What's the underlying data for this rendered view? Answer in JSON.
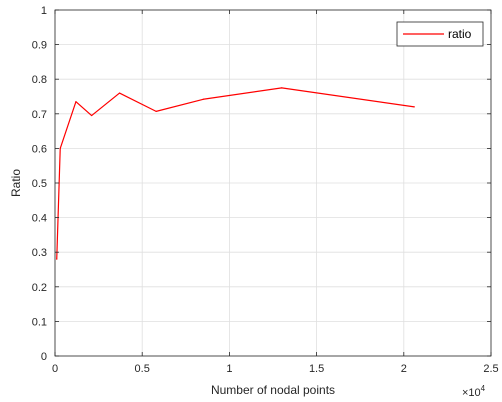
{
  "chart_data": {
    "type": "line",
    "title": "",
    "xlabel": "Number of nodal points",
    "ylabel": "Ratio",
    "x_exponent_label": "×10",
    "x_exponent_power": "4",
    "xlim": [
      0,
      25000
    ],
    "ylim": [
      0,
      1
    ],
    "x_ticks": [
      0,
      5000,
      10000,
      15000,
      20000,
      25000
    ],
    "x_tick_labels": [
      "0",
      "0.5",
      "1",
      "1.5",
      "2",
      "2.5"
    ],
    "y_ticks": [
      0,
      0.1,
      0.2,
      0.3,
      0.4,
      0.5,
      0.6,
      0.7,
      0.8,
      0.9,
      1
    ],
    "y_tick_labels": [
      "0",
      "0.1",
      "0.2",
      "0.3",
      "0.4",
      "0.5",
      "0.6",
      "0.7",
      "0.8",
      "0.9",
      "1"
    ],
    "grid": true,
    "legend_position": "top-right",
    "series": [
      {
        "name": "ratio",
        "color": "#ff0000",
        "x": [
          100,
          300,
          1200,
          2100,
          3700,
          5800,
          8500,
          13000,
          20600
        ],
        "y": [
          0.28,
          0.6,
          0.735,
          0.695,
          0.76,
          0.707,
          0.742,
          0.775,
          0.72
        ]
      }
    ]
  }
}
